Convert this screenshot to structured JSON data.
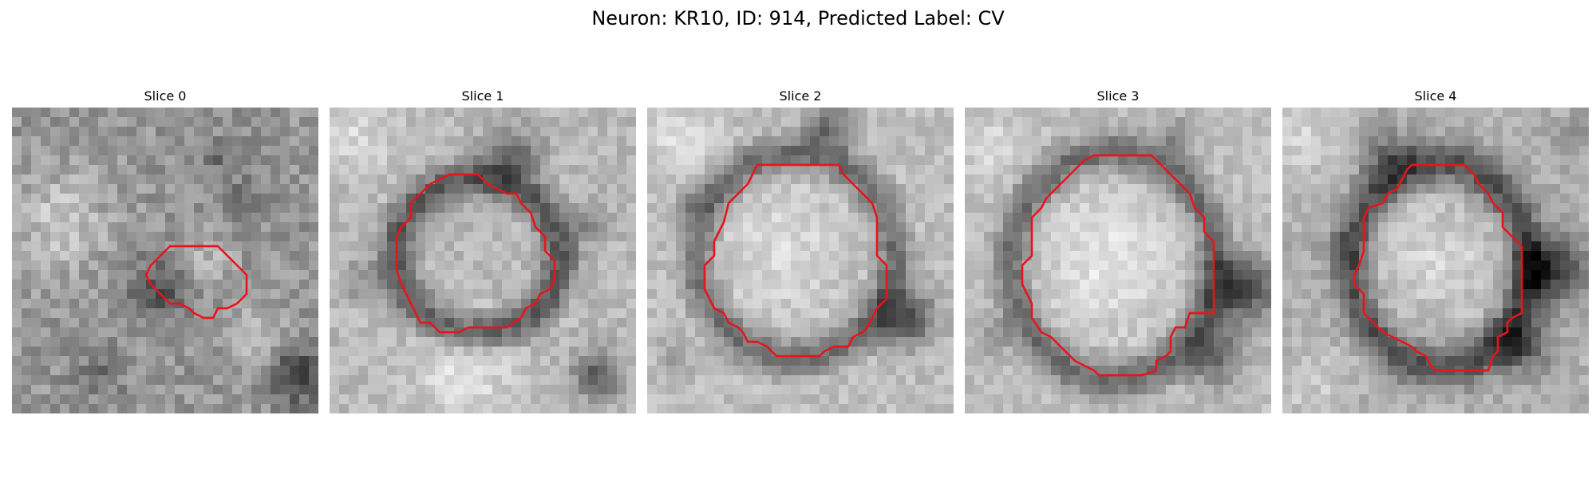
{
  "figure": {
    "title": "Neuron: KR10, ID: 914, Predicted Label: CV",
    "outline_color": "#e8141b",
    "colormap": "gray"
  },
  "panels": [
    {
      "title": "Slice 0"
    },
    {
      "title": "Slice 1"
    },
    {
      "title": "Slice 2"
    },
    {
      "title": "Slice 3"
    },
    {
      "title": "Slice 4"
    }
  ]
}
